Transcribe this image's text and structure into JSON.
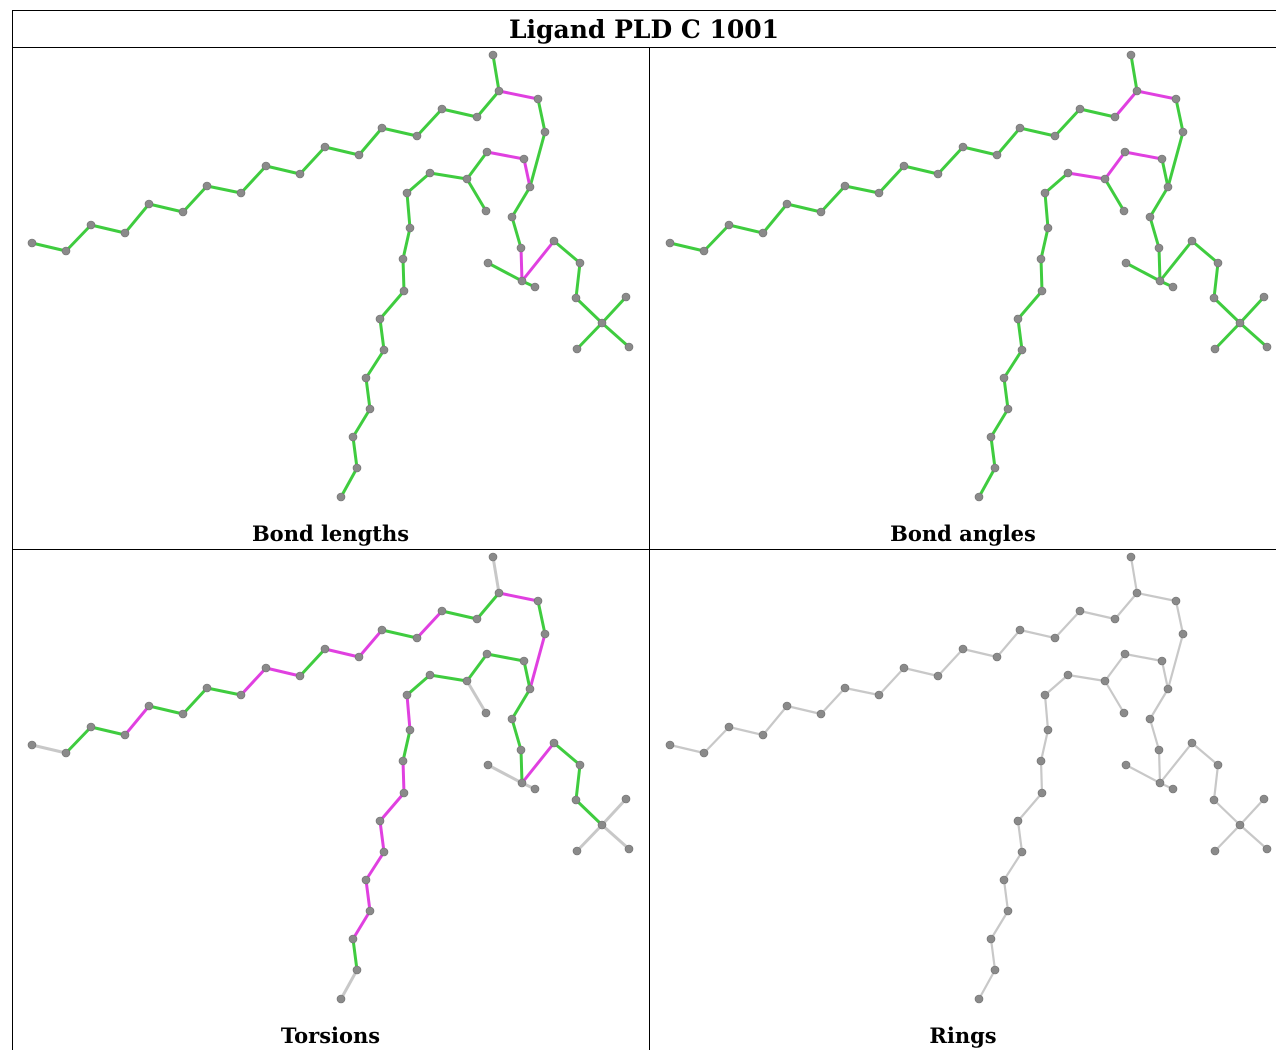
{
  "title": "Ligand PLD C 1001",
  "colors": {
    "good": "#3fcc3f",
    "outlier": "#e040e0",
    "none": "#c8c8c8",
    "atom": "#8a8a8a"
  },
  "panels": [
    {
      "id": "bond-lengths",
      "caption": "Bond lengths"
    },
    {
      "id": "bond-angles",
      "caption": "Bond angles"
    },
    {
      "id": "torsions",
      "caption": "Torsions"
    },
    {
      "id": "rings",
      "caption": "Rings"
    }
  ]
}
